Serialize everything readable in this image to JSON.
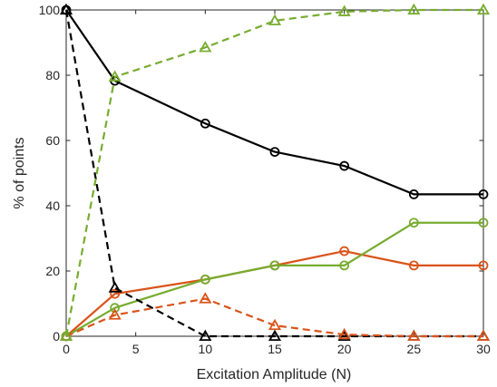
{
  "chart_data": {
    "type": "line",
    "xlabel": "Excitation Amplitude (N)",
    "ylabel": "% of points",
    "xlim": [
      0,
      30
    ],
    "ylim": [
      0,
      100
    ],
    "xticks": [
      0,
      5,
      10,
      15,
      20,
      25,
      30
    ],
    "yticks": [
      0,
      20,
      40,
      60,
      80,
      100
    ],
    "grid": false,
    "legend": "none",
    "series": [
      {
        "color": "#000000",
        "linestyle": "solid",
        "marker": "circle",
        "x": [
          0,
          3.5,
          10,
          15,
          20,
          25,
          30
        ],
        "y": [
          100,
          78.3,
          65.2,
          56.5,
          52.2,
          43.5,
          43.5
        ]
      },
      {
        "color": "#D95319",
        "linestyle": "solid",
        "marker": "circle",
        "x": [
          0,
          3.5,
          10,
          15,
          20,
          25,
          30
        ],
        "y": [
          0,
          13,
          17.4,
          21.7,
          26.1,
          21.7,
          21.7
        ]
      },
      {
        "color": "#77AC30",
        "linestyle": "solid",
        "marker": "circle",
        "x": [
          0,
          3.5,
          10,
          15,
          20,
          25,
          30
        ],
        "y": [
          0,
          8.7,
          17.4,
          21.7,
          21.7,
          34.8,
          34.8
        ]
      },
      {
        "color": "#000000",
        "linestyle": "dashed",
        "marker": "triangle",
        "x": [
          0,
          3.5,
          10,
          15,
          20,
          25,
          30
        ],
        "y": [
          100,
          14.8,
          0,
          0,
          0,
          0,
          0
        ]
      },
      {
        "color": "#D95319",
        "linestyle": "dashed",
        "marker": "triangle",
        "x": [
          0,
          3.5,
          10,
          15,
          20,
          25,
          30
        ],
        "y": [
          0,
          6.5,
          11.5,
          3.3,
          0.5,
          0,
          0
        ]
      },
      {
        "color": "#77AC30",
        "linestyle": "dashed",
        "marker": "triangle",
        "x": [
          0,
          3.5,
          10,
          15,
          20,
          25,
          30
        ],
        "y": [
          0,
          79.5,
          88.5,
          96.7,
          99.5,
          100,
          100
        ]
      }
    ]
  }
}
